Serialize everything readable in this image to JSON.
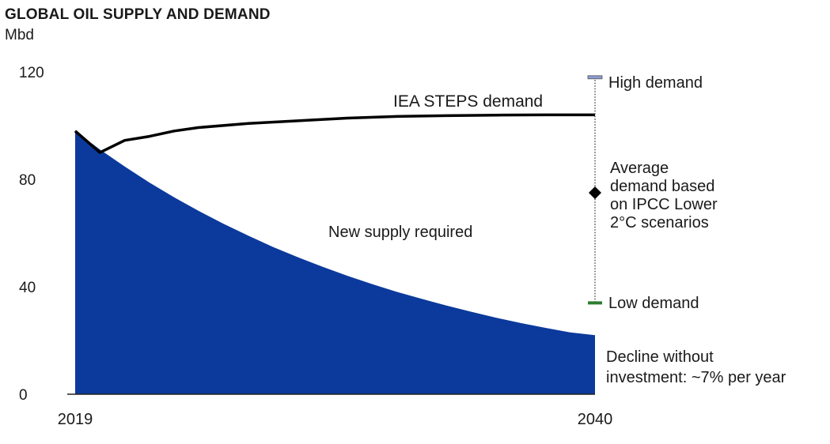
{
  "header": {
    "title": "GLOBAL OIL SUPPLY AND DEMAND",
    "unit": "Mbd"
  },
  "colors": {
    "supply_fill": "#0b3a9c",
    "demand_line": "#000000",
    "high_marker": "#8a9bd0",
    "low_marker": "#2e7d32",
    "range_line": "#555555"
  },
  "chart_data": {
    "type": "area",
    "title": "GLOBAL OIL SUPPLY AND DEMAND",
    "ylabel": "Mbd",
    "xlabel": "",
    "xlim": [
      2019,
      2040
    ],
    "ylim": [
      0,
      120
    ],
    "x_ticks": [
      "2019",
      "2040"
    ],
    "y_ticks": [
      "0",
      "40",
      "80",
      "120"
    ],
    "grid": false,
    "series": [
      {
        "name": "IEA STEPS demand",
        "kind": "line",
        "points": [
          [
            2019,
            98
          ],
          [
            2020,
            90
          ],
          [
            2021,
            94.5
          ],
          [
            2022,
            96
          ],
          [
            2023,
            98
          ],
          [
            2024,
            99.3
          ],
          [
            2026,
            100.8
          ],
          [
            2028,
            101.8
          ],
          [
            2030,
            102.8
          ],
          [
            2032,
            103.4
          ],
          [
            2034,
            103.7
          ],
          [
            2036,
            103.9
          ],
          [
            2038,
            104
          ],
          [
            2040,
            104
          ]
        ]
      },
      {
        "name": "Decline without investment: ~7% per year",
        "kind": "area",
        "points": [
          [
            2019,
            98
          ],
          [
            2020,
            91.1
          ],
          [
            2021,
            84.8
          ],
          [
            2022,
            78.8
          ],
          [
            2023,
            73.3
          ],
          [
            2024,
            68.2
          ],
          [
            2025,
            63.4
          ],
          [
            2026,
            59
          ],
          [
            2027,
            54.8
          ],
          [
            2028,
            51
          ],
          [
            2029,
            47.4
          ],
          [
            2030,
            44.1
          ],
          [
            2031,
            41
          ],
          [
            2032,
            38.1
          ],
          [
            2033,
            35.5
          ],
          [
            2034,
            33
          ],
          [
            2035,
            30.7
          ],
          [
            2036,
            28.5
          ],
          [
            2037,
            26.5
          ],
          [
            2038,
            24.7
          ],
          [
            2039,
            23
          ],
          [
            2040,
            22
          ]
        ]
      }
    ],
    "range_2040": {
      "high": 118,
      "average": 75,
      "low": 34
    },
    "annotations": {
      "area_label": "New supply required",
      "demand_label": "IEA STEPS demand",
      "high_label": "High demand",
      "average_label": [
        "Average",
        "demand based",
        "on IPCC Lower",
        "2°C scenarios"
      ],
      "low_label": "Low demand",
      "decline_label": [
        "Decline without",
        "investment: ~7% per year"
      ]
    }
  }
}
